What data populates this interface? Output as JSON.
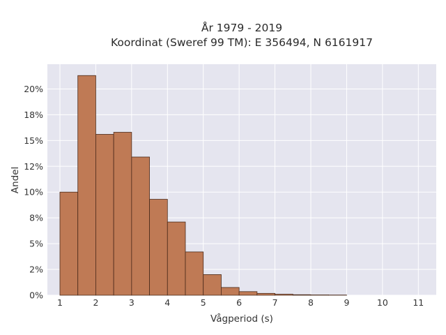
{
  "chart_data": {
    "type": "bar",
    "title_line1": "År 1979 - 2019",
    "title_line2": "Koordinat (Sweref 99 TM): E 356494, N 6161917",
    "xlabel": "Vågperiod (s)",
    "ylabel": "Andel",
    "bin_width": 0.5,
    "x_tick_labels": [
      "1",
      "2",
      "3",
      "4",
      "5",
      "6",
      "7",
      "8",
      "9",
      "10",
      "11"
    ],
    "y_tick_labels": [
      "0%",
      "2%",
      "5%",
      "8%",
      "10%",
      "12%",
      "15%",
      "18%",
      "20%"
    ],
    "xlim": [
      0.65,
      11.5
    ],
    "ylim": [
      0,
      22.4
    ],
    "grid": true,
    "bins": [
      {
        "x0": 1.0,
        "x1": 1.5,
        "value": 10.0
      },
      {
        "x0": 1.5,
        "x1": 2.0,
        "value": 21.3
      },
      {
        "x0": 2.0,
        "x1": 2.5,
        "value": 15.6
      },
      {
        "x0": 2.5,
        "x1": 3.0,
        "value": 15.8
      },
      {
        "x0": 3.0,
        "x1": 3.5,
        "value": 13.4
      },
      {
        "x0": 3.5,
        "x1": 4.0,
        "value": 9.3
      },
      {
        "x0": 4.0,
        "x1": 4.5,
        "value": 7.1
      },
      {
        "x0": 4.5,
        "x1": 5.0,
        "value": 4.2
      },
      {
        "x0": 5.0,
        "x1": 5.5,
        "value": 2.0
      },
      {
        "x0": 5.5,
        "x1": 6.0,
        "value": 0.75
      },
      {
        "x0": 6.0,
        "x1": 6.5,
        "value": 0.35
      },
      {
        "x0": 6.5,
        "x1": 7.0,
        "value": 0.18
      },
      {
        "x0": 7.0,
        "x1": 7.5,
        "value": 0.1
      },
      {
        "x0": 7.5,
        "x1": 8.0,
        "value": 0.05
      },
      {
        "x0": 8.0,
        "x1": 8.5,
        "value": 0.03
      },
      {
        "x0": 8.5,
        "x1": 9.0,
        "value": 0.02
      }
    ],
    "colors": {
      "bar_fill": "#bf7a55",
      "bar_stroke": "#4a2a1a",
      "plot_bg": "#e5e5ef",
      "grid": "#ffffff"
    }
  }
}
